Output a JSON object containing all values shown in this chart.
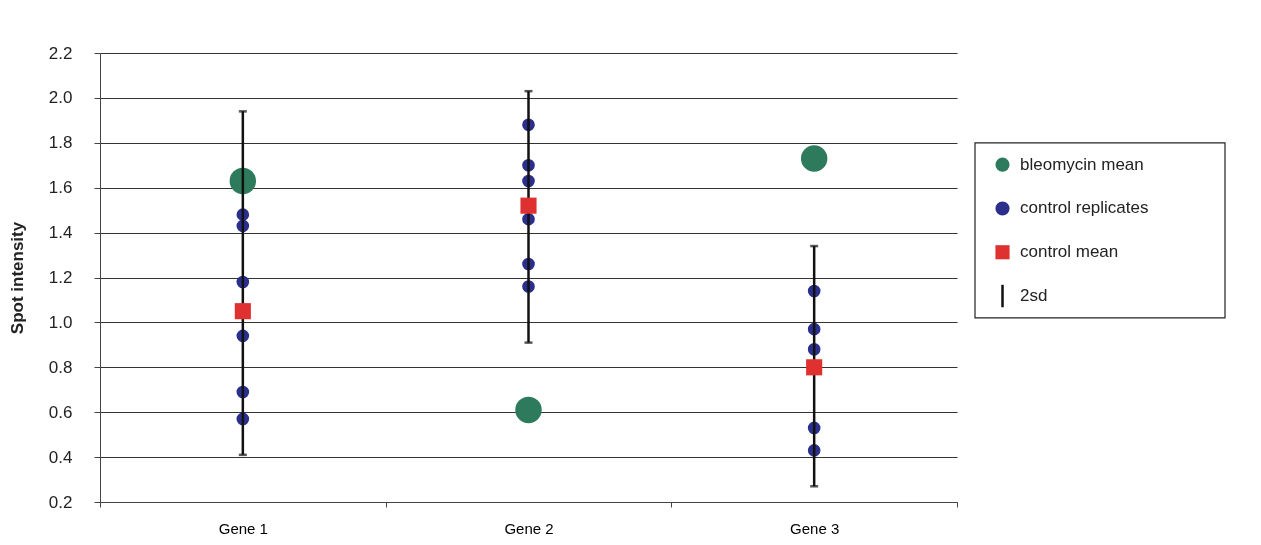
{
  "chart_data": {
    "type": "scatter",
    "ylabel": "Spot intensity",
    "categories": [
      "Gene 1",
      "Gene 2",
      "Gene 3"
    ],
    "ylim": [
      0.2,
      2.2
    ],
    "yticks": [
      0.2,
      0.4,
      0.6,
      0.8,
      {
        "value": 1,
        "label": "1.0"
      },
      1.2,
      1.4,
      1.6,
      1.8,
      {
        "value": 2,
        "label": "2.0"
      },
      2.2
    ],
    "grid": "y",
    "legend": "right",
    "series": [
      {
        "name": "bleomycin mean",
        "color": "#2e7a5c",
        "marker": "circle",
        "values": [
          1.63,
          0.61,
          1.73
        ]
      },
      {
        "name": "control replicates",
        "color": "#2a2f8c",
        "marker": "circle",
        "x": [
          "Gene 1",
          "Gene 1",
          "Gene 1",
          "Gene 1",
          "Gene 1",
          "Gene 1",
          "Gene 2",
          "Gene 2",
          "Gene 2",
          "Gene 2",
          "Gene 2",
          "Gene 2",
          "Gene 3",
          "Gene 3",
          "Gene 3",
          "Gene 3",
          "Gene 3"
        ],
        "values": [
          1.48,
          1.43,
          1.18,
          0.94,
          0.69,
          0.57,
          1.88,
          1.7,
          1.63,
          1.46,
          1.26,
          1.16,
          1.14,
          0.97,
          0.88,
          0.53,
          0.43
        ]
      },
      {
        "name": "control mean",
        "color": "#e03131",
        "marker": "square",
        "values": [
          1.05,
          1.52,
          0.8
        ],
        "errors": [
          [
            0.41,
            1.94
          ],
          [
            0.91,
            2.03
          ],
          [
            0.27,
            1.34
          ]
        ]
      }
    ],
    "annotations": [
      "2sd"
    ]
  }
}
